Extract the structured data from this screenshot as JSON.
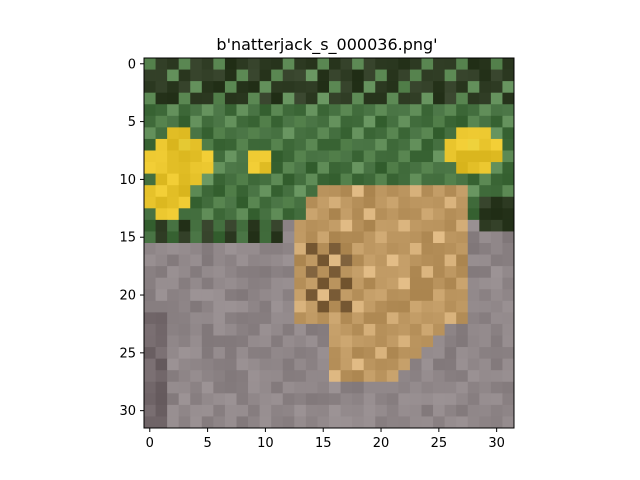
{
  "title": "b'natterjack_s_000036.png'",
  "image": {
    "width_cells": 32,
    "height_cells": 32,
    "content": "pixelated low-resolution photo of a natterjack toad on grey gravel with yellow flowers and green leaves above"
  },
  "axes": {
    "x_ticks": [
      "0",
      "5",
      "10",
      "15",
      "20",
      "25",
      "30"
    ],
    "x_tick_values": [
      0,
      5,
      10,
      15,
      20,
      25,
      30
    ],
    "y_ticks": [
      "0",
      "5",
      "10",
      "15",
      "20",
      "25",
      "30"
    ],
    "y_tick_values": [
      0,
      5,
      10,
      15,
      20,
      25,
      30
    ]
  },
  "colors": {
    "gravel": "#8e8587",
    "gravel_dark": "#6f6467",
    "leaf_dark": "#2d3a22",
    "leaf": "#3f6a3a",
    "leaf_light": "#5d8a55",
    "flower": "#e6c22a",
    "flower_bright": "#f2d640",
    "toad": "#b8925c",
    "toad_light": "#d6b07a",
    "toad_dark": "#7d5f3a"
  }
}
